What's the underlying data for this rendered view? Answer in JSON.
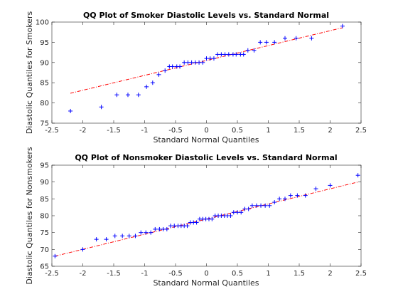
{
  "chart_data": [
    {
      "type": "scatter",
      "title": "QQ Plot of Smoker Diastolic Levels vs. Standard Normal",
      "xlabel": "Standard Normal Quantiles",
      "ylabel": "Diastolic Quantiles for Smokers",
      "xlim": [
        -2.5,
        2.5
      ],
      "ylim": [
        75,
        100
      ],
      "xticks": [
        -2.5,
        -2,
        -1.5,
        -1,
        -0.5,
        0,
        0.5,
        1,
        1.5,
        2,
        2.5
      ],
      "xtick_labels": [
        "-2.5",
        "-2",
        "-1.5",
        "-1",
        "-0.5",
        "0",
        "0.5",
        "1",
        "1.5",
        "2",
        "2.5"
      ],
      "yticks": [
        75,
        80,
        85,
        90,
        95,
        100
      ],
      "ytick_labels": [
        "75",
        "80",
        "85",
        "90",
        "95",
        "100"
      ],
      "marker": "+",
      "marker_color": "#0000ff",
      "reference_line": {
        "x": [
          -2.2,
          2.2
        ],
        "y": [
          82.4,
          98.6
        ],
        "color": "#ff0000",
        "style": "dash-dot"
      },
      "x": [
        -2.2,
        -1.7,
        -1.45,
        -1.27,
        -1.1,
        -0.97,
        -0.87,
        -0.77,
        -0.67,
        -0.6,
        -0.55,
        -0.48,
        -0.43,
        -0.36,
        -0.3,
        -0.24,
        -0.18,
        -0.12,
        -0.06,
        0.0,
        0.06,
        0.12,
        0.18,
        0.24,
        0.3,
        0.36,
        0.43,
        0.48,
        0.55,
        0.6,
        0.67,
        0.77,
        0.87,
        0.97,
        1.1,
        1.27,
        1.45,
        1.7,
        2.2
      ],
      "y": [
        78,
        79,
        82,
        82,
        82,
        84,
        85,
        87,
        88,
        89,
        89,
        89,
        89,
        90,
        90,
        90,
        90,
        90,
        90,
        91,
        91,
        91,
        92,
        92,
        92,
        92,
        92,
        92,
        92,
        92,
        93,
        93,
        95,
        95,
        95,
        96,
        96,
        96,
        99
      ]
    },
    {
      "type": "scatter",
      "title": "QQ Plot of Nonsmoker Diastolic Levels vs. Standard Normal",
      "xlabel": "Standard Normal Quantiles",
      "ylabel": "Diastolic Quantiles for Nonsmokers",
      "xlim": [
        -2.5,
        2.5
      ],
      "ylim": [
        65,
        95
      ],
      "xticks": [
        -2.5,
        -2,
        -1.5,
        -1,
        -0.5,
        0,
        0.5,
        1,
        1.5,
        2,
        2.5
      ],
      "xtick_labels": [
        "-2.5",
        "-2",
        "-1.5",
        "-1",
        "-0.5",
        "0",
        "0.5",
        "1",
        "1.5",
        "2",
        "2.5"
      ],
      "yticks": [
        65,
        70,
        75,
        80,
        85,
        90,
        95
      ],
      "ytick_labels": [
        "65",
        "70",
        "75",
        "80",
        "85",
        "90",
        "95"
      ],
      "marker": "+",
      "marker_color": "#0000ff",
      "reference_line": {
        "x": [
          -2.45,
          2.45
        ],
        "y": [
          68.0,
          90.0
        ],
        "color": "#ff0000",
        "style": "dash-dot"
      },
      "x": [
        -2.45,
        -2.0,
        -1.78,
        -1.62,
        -1.48,
        -1.36,
        -1.25,
        -1.15,
        -1.06,
        -0.98,
        -0.9,
        -0.83,
        -0.76,
        -0.7,
        -0.64,
        -0.58,
        -0.52,
        -0.46,
        -0.41,
        -0.36,
        -0.31,
        -0.26,
        -0.21,
        -0.16,
        -0.11,
        -0.06,
        -0.01,
        0.04,
        0.09,
        0.14,
        0.19,
        0.24,
        0.29,
        0.34,
        0.39,
        0.44,
        0.5,
        0.56,
        0.62,
        0.68,
        0.74,
        0.81,
        0.88,
        0.95,
        1.02,
        1.1,
        1.18,
        1.27,
        1.36,
        1.47,
        1.6,
        1.77,
        2.0,
        2.45
      ],
      "y": [
        68,
        70,
        73,
        73,
        74,
        74,
        74,
        74,
        75,
        75,
        75,
        76,
        76,
        76,
        76,
        77,
        77,
        77,
        77,
        77,
        77,
        78,
        78,
        78,
        79,
        79,
        79,
        79,
        79,
        80,
        80,
        80,
        80,
        80,
        80,
        81,
        81,
        81,
        82,
        82,
        83,
        83,
        83,
        83,
        83,
        84,
        85,
        85,
        86,
        86,
        86,
        88,
        89,
        92
      ]
    }
  ]
}
